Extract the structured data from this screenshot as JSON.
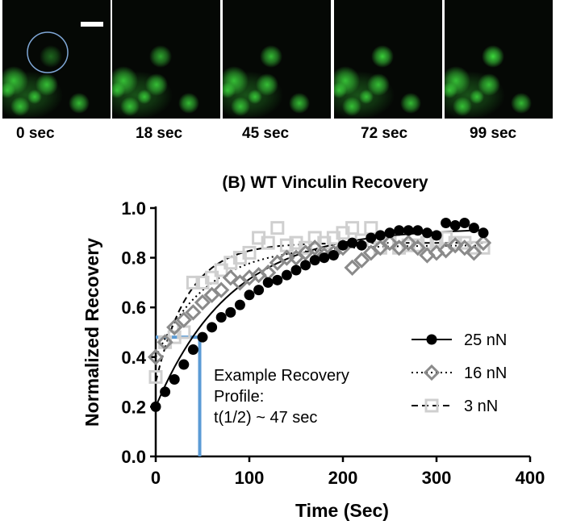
{
  "frames": [
    {
      "label": "0 sec",
      "roi_circle": true,
      "scale_bar": true,
      "spot_intensity": 0.45
    },
    {
      "label": "18 sec",
      "roi_circle": false,
      "scale_bar": false,
      "spot_intensity": 0.75
    },
    {
      "label": "45 sec",
      "roi_circle": false,
      "scale_bar": false,
      "spot_intensity": 0.85
    },
    {
      "label": "72 sec",
      "roi_circle": false,
      "scale_bar": false,
      "spot_intensity": 0.95
    },
    {
      "label": "99 sec",
      "roi_circle": false,
      "scale_bar": false,
      "spot_intensity": 1.0
    }
  ],
  "colors": {
    "fluorescence": "#3cd93c",
    "roi_circle": "#7fa7d6",
    "annotation": "#5b9bd5",
    "series_25": "#000000",
    "series_16": "#8a8a8a",
    "series_3": "#cfcfcf"
  },
  "chart_data": {
    "type": "scatter",
    "title": "(B) WT Vinculin Recovery",
    "xlabel": "Time (Sec)",
    "ylabel": "Normalized Recovery",
    "xlim": [
      0,
      400
    ],
    "ylim": [
      0,
      1.0
    ],
    "xticks": [
      "0",
      "100",
      "200",
      "300",
      "400"
    ],
    "yticks": [
      "0.0",
      "0.2",
      "0.4",
      "0.6",
      "0.8",
      "1.0"
    ],
    "series": [
      {
        "name": "25 nN",
        "marker": "circle",
        "line": "solid",
        "fit_plateau": 0.92,
        "fit_tau": 80,
        "fit_y0": 0.2,
        "x": [
          0,
          10,
          20,
          30,
          40,
          50,
          60,
          70,
          80,
          90,
          100,
          110,
          120,
          130,
          140,
          150,
          160,
          170,
          180,
          190,
          200,
          210,
          220,
          230,
          240,
          250,
          260,
          270,
          280,
          290,
          300,
          310,
          320,
          330,
          340,
          350
        ],
        "y": [
          0.2,
          0.26,
          0.31,
          0.37,
          0.43,
          0.48,
          0.52,
          0.56,
          0.58,
          0.61,
          0.65,
          0.67,
          0.7,
          0.71,
          0.73,
          0.75,
          0.77,
          0.79,
          0.8,
          0.81,
          0.85,
          0.86,
          0.85,
          0.88,
          0.89,
          0.9,
          0.91,
          0.91,
          0.91,
          0.9,
          0.89,
          0.94,
          0.93,
          0.94,
          0.92,
          0.9
        ]
      },
      {
        "name": "16 nN",
        "marker": "diamond",
        "line": "dotted",
        "fit_plateau": 0.85,
        "fit_tau": 55,
        "fit_y0": 0.4,
        "x": [
          0,
          10,
          20,
          30,
          40,
          50,
          60,
          70,
          80,
          90,
          100,
          110,
          120,
          130,
          140,
          150,
          160,
          170,
          180,
          190,
          200,
          210,
          220,
          230,
          240,
          250,
          260,
          270,
          280,
          290,
          300,
          310,
          320,
          330,
          340,
          350
        ],
        "y": [
          0.4,
          0.46,
          0.52,
          0.55,
          0.58,
          0.62,
          0.65,
          0.67,
          0.72,
          0.7,
          0.72,
          0.73,
          0.74,
          0.78,
          0.8,
          0.8,
          0.82,
          0.84,
          0.81,
          0.82,
          0.84,
          0.76,
          0.79,
          0.82,
          0.84,
          0.86,
          0.84,
          0.86,
          0.84,
          0.81,
          0.82,
          0.83,
          0.85,
          0.84,
          0.82,
          0.86
        ]
      },
      {
        "name": "3 nN",
        "marker": "square",
        "line": "dashed",
        "fit_plateau": 0.86,
        "fit_tau": 35,
        "fit_y0": 0.3,
        "x": [
          0,
          10,
          20,
          30,
          40,
          50,
          60,
          70,
          80,
          90,
          100,
          110,
          120,
          130,
          140,
          150,
          160,
          170,
          180,
          190,
          200,
          210,
          220,
          230,
          240,
          250,
          260,
          270,
          280,
          290,
          300,
          310,
          320,
          330,
          340,
          350
        ],
        "y": [
          0.32,
          0.46,
          0.48,
          0.5,
          0.7,
          0.7,
          0.72,
          0.75,
          0.78,
          0.8,
          0.82,
          0.88,
          0.86,
          0.92,
          0.85,
          0.86,
          0.84,
          0.88,
          0.86,
          0.88,
          0.9,
          0.92,
          0.87,
          0.92,
          0.84,
          0.86,
          0.84,
          0.85,
          0.85,
          0.86,
          0.87,
          0.88,
          0.86,
          0.86,
          0.84,
          0.84
        ]
      }
    ],
    "annotation": {
      "lines": [
        "Example Recovery",
        "Profile:",
        "t(1/2) ~ 47 sec"
      ],
      "half_time": 47,
      "half_value": 0.48
    },
    "legend_position": "center-right"
  }
}
